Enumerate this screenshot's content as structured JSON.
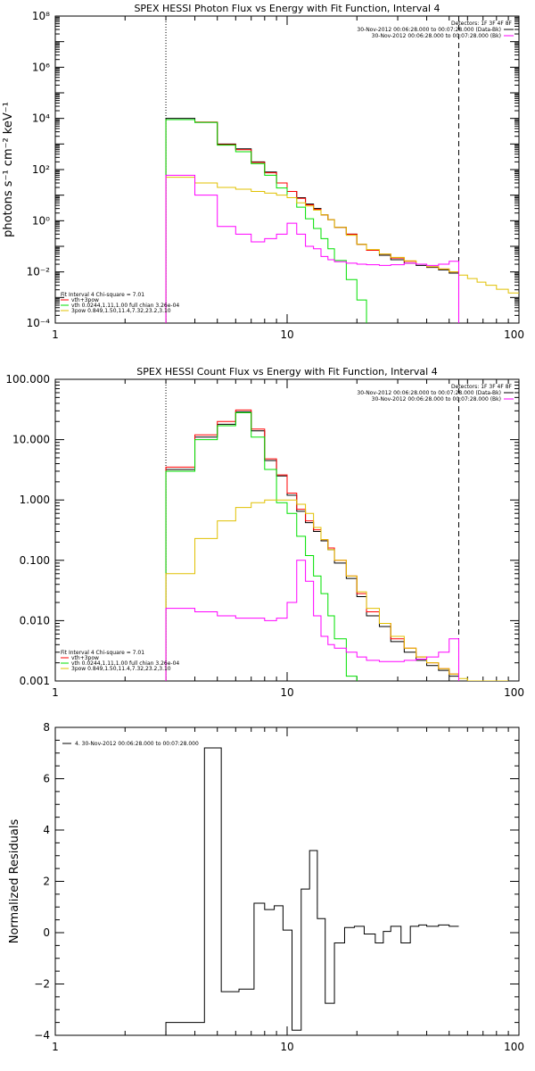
{
  "colors": {
    "data": "#000000",
    "bk": "#ff00ff",
    "total": "#ff0000",
    "vth": "#00e000",
    "pow": "#e0c000"
  },
  "chart_data": [
    {
      "type": "line",
      "title": "SPEX HESSI Photon Flux vs Energy with Fit Function, Interval 4",
      "xlabel": "",
      "ylabel": "photons s⁻¹ cm⁻² keV⁻¹",
      "xscale": "log",
      "yscale": "log",
      "xlim": [
        1,
        100
      ],
      "ylim": [
        0.0001,
        100000000
      ],
      "xticks": [
        {
          "v": 1,
          "label": "1"
        },
        {
          "v": 10,
          "label": "10"
        },
        {
          "v": 100,
          "label": "100"
        }
      ],
      "yticks": [
        {
          "v": 0.0001,
          "label": "10⁻⁴"
        },
        {
          "v": 0.01,
          "label": "10⁻²"
        },
        {
          "v": 1,
          "label": "10⁰"
        },
        {
          "v": 100,
          "label": "10²"
        },
        {
          "v": 10000,
          "label": "10⁴"
        },
        {
          "v": 1000000,
          "label": "10⁶"
        },
        {
          "v": 100000000,
          "label": "10⁸"
        }
      ],
      "vlines": [
        {
          "x": 3,
          "style": "dotted"
        },
        {
          "x": 55,
          "style": "dashed"
        }
      ],
      "legend_top": [
        "Detectors: 1F 3F 4F 8F",
        "30-Nov-2012 00:06:28.000 to 00:07:28.000 (Data-Bk)",
        "30-Nov-2012 00:06:28.000 to 00:07:28.000 (Bk)"
      ],
      "legend_top_colors": [
        "",
        "data",
        "bk"
      ],
      "legend_bottom": [
        "Fit Interval 4   Chi-square = 7.01",
        "vth+3pow",
        "vth 0.0244,1.11,1.00  full chian 3.26e-04",
        "3pow 0.849,1.50,11.4,7.32,23.2,3.10"
      ],
      "legend_bottom_colors": [
        "",
        "total",
        "vth",
        "pow"
      ],
      "edges": [
        3,
        4,
        5,
        6,
        7,
        8,
        9,
        10,
        11,
        12,
        13,
        14,
        15,
        16,
        18,
        20,
        22,
        25,
        28,
        32,
        36,
        40,
        45,
        50,
        55,
        60,
        66,
        72,
        80,
        90,
        100
      ],
      "series": [
        {
          "key": "data",
          "color": "data",
          "stop": 24,
          "values": [
            10000,
            7000,
            1000,
            650,
            200,
            80,
            30,
            14,
            8,
            4.5,
            3,
            1.7,
            1.1,
            0.55,
            0.3,
            0.12,
            0.07,
            0.045,
            0.03,
            0.022,
            0.018,
            0.015,
            0.012,
            0.009
          ]
        },
        {
          "key": "total",
          "color": "total",
          "stop": 24,
          "values": [
            9000,
            7200,
            950,
            600,
            190,
            75,
            30,
            14,
            7.5,
            4.2,
            2.8,
            1.7,
            1.1,
            0.55,
            0.3,
            0.12,
            0.07,
            0.05,
            0.035,
            0.026,
            0.02,
            0.016,
            0.013,
            0.01
          ]
        },
        {
          "key": "vth",
          "color": "vth",
          "stop": 24,
          "values": [
            9000,
            7000,
            900,
            500,
            170,
            60,
            19,
            8,
            3.4,
            1.2,
            0.5,
            0.2,
            0.08,
            0.028,
            0.005,
            0.0008,
            8e-05,
            0,
            0,
            0,
            0,
            0,
            0,
            0
          ]
        },
        {
          "key": "pow",
          "color": "pow",
          "stop": 30,
          "values": [
            50,
            30,
            20,
            17,
            14,
            12,
            10,
            8,
            5,
            3.8,
            2.6,
            1.7,
            1.1,
            0.55,
            0.27,
            0.12,
            0.075,
            0.05,
            0.037,
            0.027,
            0.02,
            0.016,
            0.013,
            0.01,
            0.0075,
            0.0055,
            0.004,
            0.003,
            0.0021,
            0.0015
          ]
        },
        {
          "key": "bk",
          "color": "bk",
          "stop": 24,
          "values": [
            60,
            10,
            0.6,
            0.3,
            0.15,
            0.2,
            0.3,
            0.8,
            0.3,
            0.1,
            0.08,
            0.04,
            0.03,
            0.025,
            0.022,
            0.02,
            0.019,
            0.018,
            0.019,
            0.022,
            0.02,
            0.018,
            0.02,
            0.026
          ]
        }
      ]
    },
    {
      "type": "line",
      "title": "SPEX HESSI Count Flux vs Energy with Fit Function, Interval 4",
      "xlabel": "",
      "ylabel": "",
      "xscale": "log",
      "yscale": "log",
      "xlim": [
        1,
        100
      ],
      "ylim": [
        0.001,
        100
      ],
      "xticks": [
        {
          "v": 1,
          "label": "1"
        },
        {
          "v": 10,
          "label": "10"
        },
        {
          "v": 100,
          "label": "100"
        }
      ],
      "yticks": [
        {
          "v": 0.001,
          "label": "0.001"
        },
        {
          "v": 0.01,
          "label": "0.010"
        },
        {
          "v": 0.1,
          "label": "0.100"
        },
        {
          "v": 1,
          "label": "1.000"
        },
        {
          "v": 10,
          "label": "10.000"
        },
        {
          "v": 100,
          "label": "100.000"
        }
      ],
      "vlines": [
        {
          "x": 3,
          "style": "dotted"
        },
        {
          "x": 55,
          "style": "dashed"
        }
      ],
      "legend_top": [
        "Detectors: 1F 3F 4F 8F",
        "30-Nov-2012 00:06:28.000 to 00:07:28.000 (Data-Bk)",
        "30-Nov-2012 00:06:28.000 to 00:07:28.000 (Bk)"
      ],
      "legend_top_colors": [
        "",
        "data",
        "bk"
      ],
      "legend_bottom": [
        "Fit Interval 4   Chi-square = 7.01",
        "vth+3pow",
        "vth 0.0244,1.11,1.00  full chian 3.26e-04",
        "3pow 0.849,1.50,11.4,7.32,23.2,3.10"
      ],
      "legend_bottom_colors": [
        "",
        "total",
        "vth",
        "pow"
      ],
      "edges": [
        3,
        4,
        5,
        6,
        7,
        8,
        9,
        10,
        11,
        12,
        13,
        14,
        15,
        16,
        18,
        20,
        22,
        25,
        28,
        32,
        36,
        40,
        45,
        50,
        55,
        60,
        66,
        72,
        80,
        90,
        100
      ],
      "series": [
        {
          "key": "data",
          "color": "data",
          "stop": 24,
          "values": [
            3.2,
            11,
            18,
            29,
            14,
            4.5,
            2.5,
            1.2,
            0.65,
            0.42,
            0.3,
            0.21,
            0.15,
            0.09,
            0.05,
            0.025,
            0.012,
            0.008,
            0.0045,
            0.003,
            0.0022,
            0.0018,
            0.0015,
            0.0012
          ]
        },
        {
          "key": "total",
          "color": "total",
          "stop": 24,
          "values": [
            3.5,
            12,
            20,
            31,
            15,
            4.8,
            2.6,
            1.3,
            0.7,
            0.45,
            0.32,
            0.22,
            0.16,
            0.1,
            0.055,
            0.028,
            0.014,
            0.009,
            0.005,
            0.0035,
            0.0025,
            0.002,
            0.0016,
            0.0013
          ]
        },
        {
          "key": "vth",
          "color": "vth",
          "stop": 24,
          "values": [
            3.0,
            10,
            17,
            28,
            11,
            3.2,
            0.9,
            0.6,
            0.25,
            0.12,
            0.055,
            0.028,
            0.012,
            0.005,
            0.0012,
            0,
            0,
            0,
            0,
            0,
            0,
            0,
            0,
            0
          ]
        },
        {
          "key": "pow",
          "color": "pow",
          "stop": 29,
          "values": [
            0.06,
            0.23,
            0.45,
            0.75,
            0.9,
            1.0,
            1.0,
            1.0,
            0.85,
            0.6,
            0.35,
            0.22,
            0.15,
            0.1,
            0.055,
            0.03,
            0.016,
            0.009,
            0.0055,
            0.0035,
            0.0025,
            0.002,
            0.0016,
            0.0013,
            0.0011,
            0.001,
            0.001,
            0.001,
            0.001
          ]
        },
        {
          "key": "bk",
          "color": "bk",
          "stop": 24,
          "values": [
            0.016,
            0.014,
            0.012,
            0.011,
            0.011,
            0.01,
            0.011,
            0.02,
            0.1,
            0.045,
            0.012,
            0.0055,
            0.004,
            0.0035,
            0.003,
            0.0025,
            0.0022,
            0.0021,
            0.0021,
            0.0022,
            0.0023,
            0.0025,
            0.003,
            0.005
          ]
        }
      ]
    },
    {
      "type": "line",
      "title": "",
      "xlabel": "",
      "ylabel": "Normalized Residuals",
      "xscale": "log",
      "yscale": "linear",
      "xlim": [
        1,
        100
      ],
      "ylim": [
        -4,
        8
      ],
      "xticks": [
        {
          "v": 1,
          "label": "1"
        },
        {
          "v": 10,
          "label": "10"
        },
        {
          "v": 100,
          "label": "100"
        }
      ],
      "yticks": [
        {
          "v": -4,
          "label": "−4"
        },
        {
          "v": -2,
          "label": "−2"
        },
        {
          "v": 0,
          "label": "0"
        },
        {
          "v": 2,
          "label": "2"
        },
        {
          "v": 4,
          "label": "4"
        },
        {
          "v": 6,
          "label": "6"
        },
        {
          "v": 8,
          "label": "8"
        }
      ],
      "vlines": [],
      "legend_top": [],
      "legend_top_colors": [],
      "legend_bottom": [],
      "legend_bottom_colors": [],
      "residual_legend": "4. 30-Nov-2012 00:06:28.000 to 00:07:28.000",
      "edges": [
        3,
        4.4,
        5.2,
        6.2,
        7.2,
        8.0,
        8.8,
        9.6,
        10.5,
        11.5,
        12.5,
        13.5,
        14.6,
        16.0,
        17.7,
        19.5,
        21.5,
        24,
        26,
        28,
        31,
        34,
        37,
        40,
        45,
        50,
        55
      ],
      "series": [
        {
          "key": "residuals",
          "color": "data",
          "stop": 26,
          "values": [
            -3.5,
            7.2,
            -2.3,
            -2.2,
            1.15,
            0.9,
            1.05,
            0.1,
            -3.8,
            1.7,
            3.2,
            0.55,
            -2.75,
            -0.4,
            0.2,
            0.25,
            -0.05,
            -0.4,
            0.05,
            0.25,
            -0.4,
            0.25,
            0.3,
            0.25,
            0.3,
            0.25
          ]
        }
      ]
    }
  ]
}
